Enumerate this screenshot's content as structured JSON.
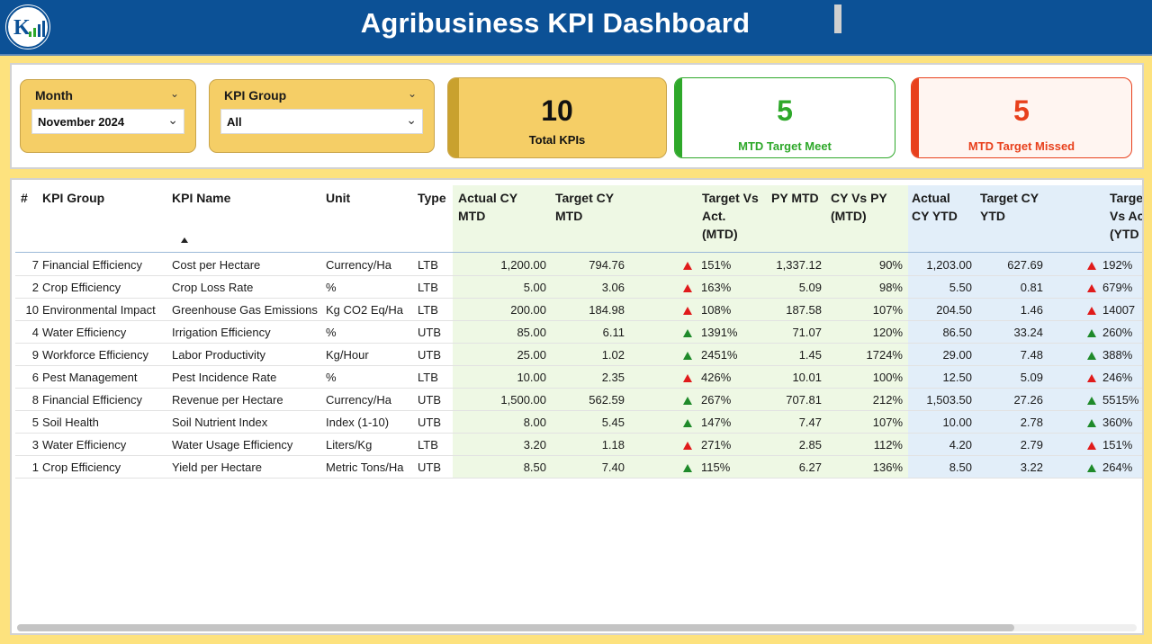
{
  "app": {
    "title": "Agribusiness KPI Dashboard"
  },
  "slicers": {
    "month": {
      "label": "Month",
      "value": "November 2024"
    },
    "kpi_group": {
      "label": "KPI Group",
      "value": "All"
    }
  },
  "cards": {
    "total": {
      "value": "10",
      "caption": "Total KPIs"
    },
    "meet": {
      "value": "5",
      "caption": "MTD Target Meet",
      "color": "#2ea82a"
    },
    "missed": {
      "value": "5",
      "caption": "MTD Target Missed",
      "color": "#e8401c"
    }
  },
  "table": {
    "headers": {
      "num": "#",
      "group": "KPI Group",
      "name": "KPI Name",
      "unit": "Unit",
      "type": "Type",
      "actual_mtd_1": "Actual CY",
      "actual_mtd_2": "MTD",
      "target_mtd_1": "Target CY",
      "target_mtd_2": "MTD",
      "tva_mtd_1": "Target Vs",
      "tva_mtd_2": "Act.",
      "tva_mtd_3": "(MTD)",
      "py_mtd": "PY MTD",
      "cyvpy_1": "CY Vs PY",
      "cyvpy_2": "(MTD)",
      "actual_ytd_1": "Actual",
      "actual_ytd_2": "CY YTD",
      "target_ytd_1": "Target CY",
      "target_ytd_2": "YTD",
      "tva_ytd_1": "Targe",
      "tva_ytd_2": "Vs Ac",
      "tva_ytd_3": "(YTD"
    },
    "rows": [
      {
        "num": "7",
        "group": "Financial Efficiency",
        "name": "Cost per Hectare",
        "unit": "Currency/Ha",
        "type": "LTB",
        "actual_mtd": "1,200.00",
        "target_mtd": "794.76",
        "mtd_status": "red",
        "tva_mtd": "151%",
        "py_mtd": "1,337.12",
        "cy_vs_py": "90%",
        "actual_ytd": "1,203.00",
        "target_ytd": "627.69",
        "ytd_status": "red",
        "tva_ytd": "192%"
      },
      {
        "num": "2",
        "group": "Crop Efficiency",
        "name": "Crop Loss Rate",
        "unit": "%",
        "type": "LTB",
        "actual_mtd": "5.00",
        "target_mtd": "3.06",
        "mtd_status": "red",
        "tva_mtd": "163%",
        "py_mtd": "5.09",
        "cy_vs_py": "98%",
        "actual_ytd": "5.50",
        "target_ytd": "0.81",
        "ytd_status": "red",
        "tva_ytd": "679%"
      },
      {
        "num": "10",
        "group": "Environmental Impact",
        "name": "Greenhouse Gas Emissions",
        "unit": "Kg CO2 Eq/Ha",
        "type": "LTB",
        "actual_mtd": "200.00",
        "target_mtd": "184.98",
        "mtd_status": "red",
        "tva_mtd": "108%",
        "py_mtd": "187.58",
        "cy_vs_py": "107%",
        "actual_ytd": "204.50",
        "target_ytd": "1.46",
        "ytd_status": "red",
        "tva_ytd": "14007"
      },
      {
        "num": "4",
        "group": "Water Efficiency",
        "name": "Irrigation Efficiency",
        "unit": "%",
        "type": "UTB",
        "actual_mtd": "85.00",
        "target_mtd": "6.11",
        "mtd_status": "green",
        "tva_mtd": "1391%",
        "py_mtd": "71.07",
        "cy_vs_py": "120%",
        "actual_ytd": "86.50",
        "target_ytd": "33.24",
        "ytd_status": "green",
        "tva_ytd": "260%"
      },
      {
        "num": "9",
        "group": "Workforce Efficiency",
        "name": "Labor Productivity",
        "unit": "Kg/Hour",
        "type": "UTB",
        "actual_mtd": "25.00",
        "target_mtd": "1.02",
        "mtd_status": "green",
        "tva_mtd": "2451%",
        "py_mtd": "1.45",
        "cy_vs_py": "1724%",
        "actual_ytd": "29.00",
        "target_ytd": "7.48",
        "ytd_status": "green",
        "tva_ytd": "388%"
      },
      {
        "num": "6",
        "group": "Pest Management",
        "name": "Pest Incidence Rate",
        "unit": "%",
        "type": "LTB",
        "actual_mtd": "10.00",
        "target_mtd": "2.35",
        "mtd_status": "red",
        "tva_mtd": "426%",
        "py_mtd": "10.01",
        "cy_vs_py": "100%",
        "actual_ytd": "12.50",
        "target_ytd": "5.09",
        "ytd_status": "red",
        "tva_ytd": "246%"
      },
      {
        "num": "8",
        "group": "Financial Efficiency",
        "name": "Revenue per Hectare",
        "unit": "Currency/Ha",
        "type": "UTB",
        "actual_mtd": "1,500.00",
        "target_mtd": "562.59",
        "mtd_status": "green",
        "tva_mtd": "267%",
        "py_mtd": "707.81",
        "cy_vs_py": "212%",
        "actual_ytd": "1,503.50",
        "target_ytd": "27.26",
        "ytd_status": "green",
        "tva_ytd": "5515%"
      },
      {
        "num": "5",
        "group": "Soil Health",
        "name": "Soil Nutrient Index",
        "unit": "Index (1-10)",
        "type": "UTB",
        "actual_mtd": "8.00",
        "target_mtd": "5.45",
        "mtd_status": "green",
        "tva_mtd": "147%",
        "py_mtd": "7.47",
        "cy_vs_py": "107%",
        "actual_ytd": "10.00",
        "target_ytd": "2.78",
        "ytd_status": "green",
        "tva_ytd": "360%"
      },
      {
        "num": "3",
        "group": "Water Efficiency",
        "name": "Water Usage Efficiency",
        "unit": "Liters/Kg",
        "type": "LTB",
        "actual_mtd": "3.20",
        "target_mtd": "1.18",
        "mtd_status": "red",
        "tva_mtd": "271%",
        "py_mtd": "2.85",
        "cy_vs_py": "112%",
        "actual_ytd": "4.20",
        "target_ytd": "2.79",
        "ytd_status": "red",
        "tva_ytd": "151%"
      },
      {
        "num": "1",
        "group": "Crop Efficiency",
        "name": "Yield per Hectare",
        "unit": "Metric Tons/Ha",
        "type": "UTB",
        "actual_mtd": "8.50",
        "target_mtd": "7.40",
        "mtd_status": "green",
        "tva_mtd": "115%",
        "py_mtd": "6.27",
        "cy_vs_py": "136%",
        "actual_ytd": "8.50",
        "target_ytd": "3.22",
        "ytd_status": "green",
        "tva_ytd": "264%"
      }
    ]
  },
  "colors": {
    "header_bg": "#0c5196",
    "accent_yellow": "#f5ce66",
    "up_green": "#1f8a2a",
    "up_red": "#e01b1b",
    "mtd_shade": "#eef8e4",
    "ytd_shade": "#e2eef9"
  }
}
